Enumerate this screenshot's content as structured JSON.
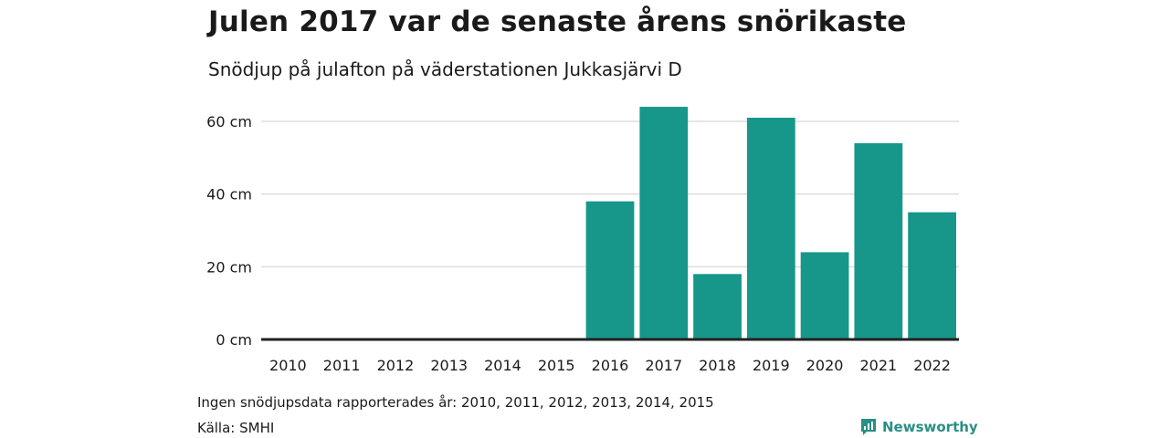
{
  "header": {
    "title": "Julen 2017 var de senaste årens snörikaste",
    "subtitle": "Snödjup på julafton på väderstationen Jukkasjärvi D"
  },
  "footer": {
    "note": "Ingen snödjupsdata rapporterades år: 2010, 2011, 2012, 2013, 2014, 2015",
    "source": "Källa: SMHI",
    "brand": "Newsworthy"
  },
  "colors": {
    "bar": "#16978a",
    "grid": "#dddddd",
    "baseline": "#222222",
    "brand": "#2a8f83"
  },
  "chart_data": {
    "type": "bar",
    "categories": [
      "2010",
      "2011",
      "2012",
      "2013",
      "2014",
      "2015",
      "2016",
      "2017",
      "2018",
      "2019",
      "2020",
      "2021",
      "2022"
    ],
    "values": [
      null,
      null,
      null,
      null,
      null,
      null,
      38,
      64,
      18,
      61,
      24,
      54,
      35
    ],
    "ylim": [
      0,
      65
    ],
    "yticks": [
      0,
      20,
      40,
      60
    ],
    "ytick_labels": [
      "0 cm",
      "20 cm",
      "40 cm",
      "60 cm"
    ],
    "grid": true
  }
}
